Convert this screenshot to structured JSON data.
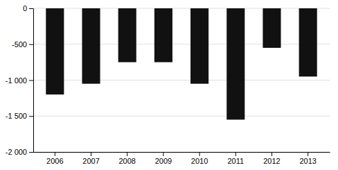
{
  "chart_data": {
    "type": "bar",
    "categories": [
      "2006",
      "2007",
      "2008",
      "2009",
      "2010",
      "2011",
      "2012",
      "2013"
    ],
    "values": [
      -1200,
      -1050,
      -750,
      -750,
      -1050,
      -1550,
      -550,
      -950
    ],
    "color": "#111111",
    "ylim": [
      -2000,
      0
    ],
    "yticks": [
      0,
      -500,
      {
        "value": -1000,
        "label": "-1 000"
      },
      {
        "value": -1500,
        "label": "-1 500"
      },
      {
        "value": -2000,
        "label": "-2 000"
      }
    ],
    "grid": true
  }
}
